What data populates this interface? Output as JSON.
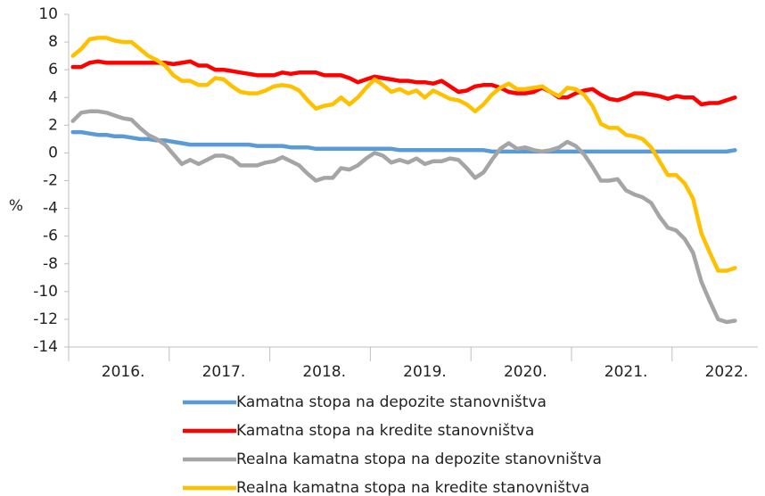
{
  "chart_data": {
    "type": "line",
    "ylabel": "%",
    "categories": [
      null,
      null,
      null,
      null,
      null,
      null,
      "2016.",
      null,
      null,
      null,
      null,
      null,
      null,
      null,
      null,
      null,
      null,
      null,
      "2017.",
      null,
      null,
      null,
      null,
      null,
      null,
      null,
      null,
      null,
      null,
      null,
      "2018.",
      null,
      null,
      null,
      null,
      null,
      null,
      null,
      null,
      null,
      null,
      null,
      "2019.",
      null,
      null,
      null,
      null,
      null,
      null,
      null,
      null,
      null,
      null,
      null,
      "2020.",
      null,
      null,
      null,
      null,
      null,
      null,
      null,
      null,
      null,
      null,
      null,
      "2021.",
      null,
      null,
      null,
      null,
      null,
      null,
      null,
      null,
      null,
      null,
      null,
      "2022.",
      null
    ],
    "ylim": [
      -14,
      10
    ],
    "yticks": [
      -14,
      -12,
      -10,
      -8,
      -6,
      -4,
      -2,
      0,
      2,
      4,
      6,
      8,
      10
    ],
    "grid": false,
    "legend": "bottom",
    "series": [
      {
        "name": "Kamatna stopa na depozite stanovništva",
        "color": "#5b9bd5",
        "values": [
          1.5,
          1.5,
          1.4,
          1.3,
          1.3,
          1.2,
          1.2,
          1.1,
          1.0,
          1.0,
          0.9,
          0.9,
          0.8,
          0.7,
          0.6,
          0.6,
          0.6,
          0.6,
          0.6,
          0.6,
          0.6,
          0.6,
          0.5,
          0.5,
          0.5,
          0.5,
          0.4,
          0.4,
          0.4,
          0.3,
          0.3,
          0.3,
          0.3,
          0.3,
          0.3,
          0.3,
          0.3,
          0.3,
          0.3,
          0.2,
          0.2,
          0.2,
          0.2,
          0.2,
          0.2,
          0.2,
          0.2,
          0.2,
          0.2,
          0.2,
          0.1,
          0.1,
          0.1,
          0.1,
          0.1,
          0.1,
          0.1,
          0.1,
          0.1,
          0.1,
          0.1,
          0.1,
          0.1,
          0.1,
          0.1,
          0.1,
          0.1,
          0.1,
          0.1,
          0.1,
          0.1,
          0.1,
          0.1,
          0.1,
          0.1,
          0.1,
          0.1,
          0.1,
          0.1,
          0.2
        ]
      },
      {
        "name": "Kamatna stopa na kredite stanovništva",
        "color": "#ff0000",
        "values": [
          6.2,
          6.2,
          6.5,
          6.6,
          6.5,
          6.5,
          6.5,
          6.5,
          6.5,
          6.5,
          6.5,
          6.5,
          6.4,
          6.5,
          6.6,
          6.3,
          6.3,
          6.0,
          6.0,
          5.9,
          5.8,
          5.7,
          5.6,
          5.6,
          5.6,
          5.8,
          5.7,
          5.8,
          5.8,
          5.8,
          5.6,
          5.6,
          5.6,
          5.4,
          5.1,
          5.3,
          5.5,
          5.4,
          5.3,
          5.2,
          5.2,
          5.1,
          5.1,
          5.0,
          5.2,
          4.8,
          4.4,
          4.5,
          4.8,
          4.9,
          4.9,
          4.7,
          4.4,
          4.3,
          4.3,
          4.4,
          4.7,
          4.4,
          4.0,
          4.0,
          4.3,
          4.5,
          4.6,
          4.2,
          3.9,
          3.8,
          4.0,
          4.3,
          4.3,
          4.2,
          4.1,
          3.9,
          4.1,
          4.0,
          4.0,
          3.5,
          3.6,
          3.6,
          3.8,
          4.0
        ]
      },
      {
        "name": "Realna kamatna stopa na depozite stanovništva",
        "color": "#a5a5a5",
        "values": [
          2.3,
          2.9,
          3.0,
          3.0,
          2.9,
          2.7,
          2.5,
          2.4,
          1.8,
          1.3,
          1.0,
          0.6,
          -0.1,
          -0.8,
          -0.5,
          -0.8,
          -0.5,
          -0.2,
          -0.2,
          -0.4,
          -0.9,
          -0.9,
          -0.9,
          -0.7,
          -0.6,
          -0.3,
          -0.6,
          -0.9,
          -1.5,
          -2.0,
          -1.8,
          -1.8,
          -1.1,
          -1.2,
          -0.9,
          -0.4,
          0.0,
          -0.2,
          -0.7,
          -0.5,
          -0.7,
          -0.4,
          -0.8,
          -0.6,
          -0.6,
          -0.4,
          -0.5,
          -1.1,
          -1.8,
          -1.4,
          -0.5,
          0.3,
          0.7,
          0.3,
          0.4,
          0.2,
          0.1,
          0.2,
          0.4,
          0.8,
          0.5,
          -0.1,
          -1.0,
          -2.0,
          -2.0,
          -1.9,
          -2.7,
          -3.0,
          -3.2,
          -3.6,
          -4.6,
          -5.4,
          -5.6,
          -6.2,
          -7.2,
          -9.3,
          -10.7,
          -12.0,
          -12.2,
          -12.1
        ]
      },
      {
        "name": "Realna kamatna stopa na kredite stanovništva",
        "color": "#ffc000",
        "values": [
          7.0,
          7.5,
          8.2,
          8.3,
          8.3,
          8.1,
          8.0,
          8.0,
          7.5,
          7.0,
          6.7,
          6.3,
          5.6,
          5.2,
          5.2,
          4.9,
          4.9,
          5.4,
          5.3,
          4.8,
          4.4,
          4.3,
          4.3,
          4.5,
          4.8,
          4.9,
          4.8,
          4.5,
          3.8,
          3.2,
          3.4,
          3.5,
          4.0,
          3.5,
          4.0,
          4.7,
          5.3,
          4.9,
          4.4,
          4.6,
          4.3,
          4.5,
          4.0,
          4.5,
          4.2,
          3.9,
          3.8,
          3.5,
          3.0,
          3.5,
          4.2,
          4.7,
          5.0,
          4.6,
          4.6,
          4.7,
          4.8,
          4.4,
          4.1,
          4.7,
          4.6,
          4.2,
          3.4,
          2.1,
          1.8,
          1.8,
          1.3,
          1.2,
          1.0,
          0.4,
          -0.6,
          -1.6,
          -1.6,
          -2.2,
          -3.3,
          -5.8,
          -7.2,
          -8.5,
          -8.5,
          -8.3
        ]
      }
    ]
  }
}
